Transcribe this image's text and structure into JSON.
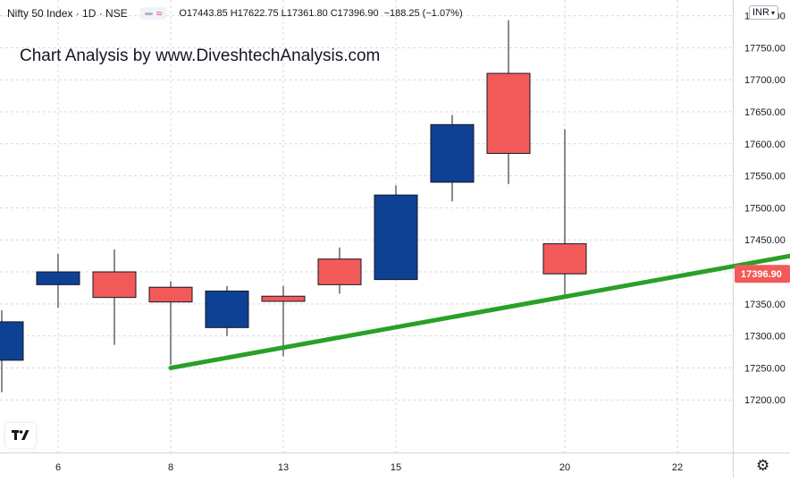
{
  "header": {
    "symbol": "Nifty 50 Index · 1D · NSE",
    "ohlc": "O17443.85 H17622.75 L17361.80 C17396.90",
    "change": "−188.25 (−1.07%)"
  },
  "watermark": "Chart Analysis by www.DiveshtechAnalysis.com",
  "currency": "INR",
  "icons": {
    "logo": "tradingview-logo-icon",
    "settings": "gear-icon",
    "indicator": "wave-icon"
  },
  "colors": {
    "up": "#0e4194",
    "down": "#f25a5a",
    "trendline": "#28a029",
    "last_price_label": "#f25a5a",
    "grid": "#d6d9e0"
  },
  "chart_data": {
    "type": "candlestick",
    "title": "",
    "ylim": [
      17160,
      17840
    ],
    "y_ticks": [
      17200,
      17250,
      17300,
      17350,
      17400,
      17450,
      17500,
      17550,
      17600,
      17650,
      17700,
      17750,
      17800
    ],
    "x_tick_labels": [
      "6",
      "8",
      "13",
      "15",
      "20",
      "22"
    ],
    "grid": true,
    "candles": [
      {
        "open": 17262,
        "high": 17340,
        "low": 17212,
        "close": 17322
      },
      {
        "open": 17380,
        "high": 17428,
        "low": 17344,
        "close": 17400
      },
      {
        "open": 17400,
        "high": 17435,
        "low": 17286,
        "close": 17360
      },
      {
        "open": 17376,
        "high": 17385,
        "low": 17255,
        "close": 17353
      },
      {
        "open": 17313,
        "high": 17378,
        "low": 17300,
        "close": 17370
      },
      {
        "open": 17362,
        "high": 17378,
        "low": 17268,
        "close": 17354
      },
      {
        "open": 17420,
        "high": 17438,
        "low": 17366,
        "close": 17380
      },
      {
        "open": 17388,
        "high": 17535,
        "low": 17388,
        "close": 17520
      },
      {
        "open": 17540,
        "high": 17645,
        "low": 17510,
        "close": 17630
      },
      {
        "open": 17710,
        "high": 17793,
        "low": 17537,
        "close": 17585
      },
      {
        "open": 17443.85,
        "high": 17622.75,
        "low": 17361.8,
        "close": 17396.9
      }
    ],
    "last_price": "17396.90",
    "trendline": {
      "from": {
        "candle": 3,
        "price": 17250
      },
      "to": {
        "candle": 14.5,
        "price": 17433
      }
    }
  }
}
